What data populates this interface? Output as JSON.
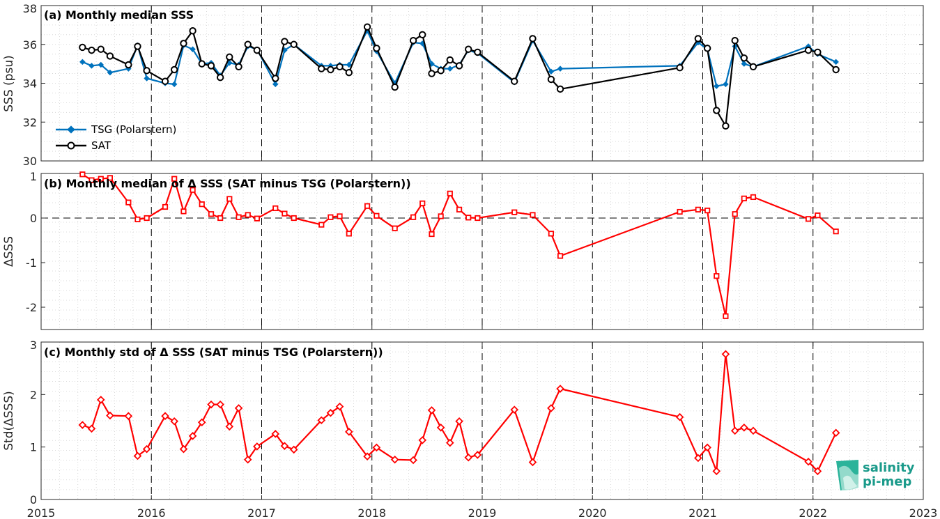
{
  "chart_data": [
    {
      "type": "line",
      "title": "(a) Monthly median SSS",
      "ylabel": "SSS (psu)",
      "xlim": [
        2015,
        2023
      ],
      "ylim": [
        30,
        38
      ],
      "yticks": [
        30,
        32,
        34,
        36,
        38
      ],
      "grid": "minor dotted",
      "legend_position": "bottom-left",
      "series": [
        {
          "name": "TSG (Polarstern)",
          "color": "#0072BD",
          "marker": "diamond",
          "x": [
            2015.375,
            2015.458,
            2015.542,
            2015.625,
            2015.792,
            2015.875,
            2015.958,
            2016.125,
            2016.208,
            2016.292,
            2016.375,
            2016.458,
            2016.542,
            2016.625,
            2016.708,
            2016.792,
            2016.875,
            2016.958,
            2017.125,
            2017.208,
            2017.292,
            2017.542,
            2017.625,
            2017.708,
            2017.792,
            2017.958,
            2018.042,
            2018.208,
            2018.375,
            2018.458,
            2018.542,
            2018.625,
            2018.708,
            2018.792,
            2018.875,
            2018.958,
            2019.292,
            2019.458,
            2019.625,
            2019.708,
            2020.792,
            2020.958,
            2021.042,
            2021.125,
            2021.208,
            2021.292,
            2021.375,
            2021.458,
            2021.958,
            2022.042,
            2022.208
          ],
          "y": [
            35.1,
            34.9,
            34.95,
            34.55,
            34.75,
            35.95,
            34.25,
            34.0,
            33.95,
            35.95,
            35.75,
            35.0,
            35.05,
            34.4,
            35.05,
            34.95,
            35.9,
            35.75,
            33.95,
            35.7,
            36.0,
            34.9,
            34.9,
            34.95,
            34.95,
            36.7,
            35.65,
            34.0,
            36.1,
            36.05,
            35.0,
            34.75,
            34.75,
            34.95,
            35.7,
            35.55,
            34.05,
            36.2,
            34.6,
            34.75,
            34.9,
            36.1,
            35.75,
            33.85,
            33.95,
            35.9,
            35.0,
            34.85,
            35.9,
            35.5,
            35.1
          ]
        },
        {
          "name": "SAT",
          "color": "#000000",
          "marker": "circle",
          "x": [
            2015.375,
            2015.458,
            2015.542,
            2015.625,
            2015.792,
            2015.875,
            2015.958,
            2016.125,
            2016.208,
            2016.292,
            2016.375,
            2016.458,
            2016.542,
            2016.625,
            2016.708,
            2016.792,
            2016.875,
            2016.958,
            2017.125,
            2017.208,
            2017.292,
            2017.542,
            2017.625,
            2017.708,
            2017.792,
            2017.958,
            2018.042,
            2018.208,
            2018.375,
            2018.458,
            2018.542,
            2018.625,
            2018.708,
            2018.792,
            2018.875,
            2018.958,
            2019.292,
            2019.458,
            2019.625,
            2019.708,
            2020.792,
            2020.958,
            2021.042,
            2021.125,
            2021.208,
            2021.292,
            2021.375,
            2021.458,
            2021.958,
            2022.042,
            2022.208
          ],
          "y": [
            35.85,
            35.7,
            35.75,
            35.4,
            34.95,
            35.9,
            34.65,
            34.1,
            34.7,
            36.05,
            36.7,
            35.0,
            34.9,
            34.3,
            35.35,
            34.85,
            36.0,
            35.7,
            34.25,
            36.15,
            36.0,
            34.75,
            34.7,
            34.85,
            34.55,
            36.9,
            35.8,
            33.8,
            36.2,
            36.5,
            34.5,
            34.65,
            35.2,
            34.9,
            35.75,
            35.6,
            34.1,
            36.3,
            34.2,
            33.7,
            34.8,
            36.3,
            35.8,
            32.6,
            31.8,
            36.2,
            35.3,
            34.85,
            35.7,
            35.6,
            34.7
          ]
        }
      ]
    },
    {
      "type": "line",
      "title": "(b) Monthly median of Δ SSS (SAT minus TSG (Polarstern))",
      "ylabel": "ΔSSS",
      "xlim": [
        2015,
        2023
      ],
      "ylim": [
        -2.5,
        1
      ],
      "yticks": [
        -2,
        -1,
        0,
        1
      ],
      "grid": "minor dotted",
      "reference_line": 0,
      "series": [
        {
          "color": "#FF0000",
          "marker": "square",
          "x": [
            2015.375,
            2015.458,
            2015.542,
            2015.625,
            2015.792,
            2015.875,
            2015.958,
            2016.125,
            2016.208,
            2016.292,
            2016.375,
            2016.458,
            2016.542,
            2016.625,
            2016.708,
            2016.792,
            2016.875,
            2016.958,
            2017.125,
            2017.208,
            2017.292,
            2017.542,
            2017.625,
            2017.708,
            2017.792,
            2017.958,
            2018.042,
            2018.208,
            2018.375,
            2018.458,
            2018.542,
            2018.625,
            2018.708,
            2018.792,
            2018.875,
            2018.958,
            2019.292,
            2019.458,
            2019.625,
            2019.708,
            2020.792,
            2020.958,
            2021.042,
            2021.125,
            2021.208,
            2021.292,
            2021.375,
            2021.458,
            2021.958,
            2022.042,
            2022.208
          ],
          "y": [
            0.98,
            0.85,
            0.88,
            0.9,
            0.35,
            -0.03,
            0.0,
            0.25,
            0.88,
            0.15,
            0.63,
            0.31,
            0.09,
            0.0,
            0.43,
            0.02,
            0.07,
            -0.01,
            0.22,
            0.1,
            0.0,
            -0.15,
            0.02,
            0.04,
            -0.35,
            0.27,
            0.05,
            -0.23,
            0.02,
            0.33,
            -0.36,
            0.04,
            0.55,
            0.19,
            0.01,
            0.0,
            0.13,
            0.07,
            -0.35,
            -0.85,
            0.14,
            0.19,
            0.17,
            -1.3,
            -2.2,
            0.09,
            0.44,
            0.47,
            -0.02,
            0.06,
            -0.3
          ]
        }
      ]
    },
    {
      "type": "line",
      "title": "(c) Monthly std of Δ SSS (SAT minus TSG (Polarstern))",
      "ylabel": "Std(ΔSSS)",
      "xlim": [
        2015,
        2023
      ],
      "ylim": [
        0,
        3
      ],
      "yticks": [
        0,
        1,
        2,
        3
      ],
      "xticks": [
        "2015",
        "2016",
        "2017",
        "2018",
        "2019",
        "2020",
        "2021",
        "2022",
        "2023"
      ],
      "grid": "minor dotted",
      "series": [
        {
          "color": "#FF0000",
          "marker": "diamond",
          "x": [
            2015.375,
            2015.458,
            2015.542,
            2015.625,
            2015.792,
            2015.875,
            2015.958,
            2016.125,
            2016.208,
            2016.292,
            2016.375,
            2016.458,
            2016.542,
            2016.625,
            2016.708,
            2016.792,
            2016.875,
            2016.958,
            2017.125,
            2017.208,
            2017.292,
            2017.542,
            2017.625,
            2017.708,
            2017.792,
            2017.958,
            2018.042,
            2018.208,
            2018.375,
            2018.458,
            2018.542,
            2018.625,
            2018.708,
            2018.792,
            2018.875,
            2018.958,
            2019.292,
            2019.458,
            2019.625,
            2019.708,
            2020.792,
            2020.958,
            2021.042,
            2021.125,
            2021.208,
            2021.292,
            2021.375,
            2021.458,
            2021.958,
            2022.042,
            2022.208
          ],
          "y": [
            1.42,
            1.35,
            1.9,
            1.6,
            1.59,
            0.83,
            0.96,
            1.59,
            1.49,
            0.96,
            1.21,
            1.47,
            1.81,
            1.81,
            1.39,
            1.74,
            0.76,
            1.01,
            1.25,
            1.02,
            0.95,
            1.51,
            1.65,
            1.77,
            1.29,
            0.82,
            0.99,
            0.76,
            0.75,
            1.13,
            1.7,
            1.37,
            1.08,
            1.49,
            0.8,
            0.85,
            1.71,
            0.71,
            1.74,
            2.11,
            1.57,
            0.79,
            0.99,
            0.54,
            2.77,
            1.31,
            1.37,
            1.31,
            0.72,
            0.54,
            1.27
          ]
        }
      ]
    }
  ],
  "logo": {
    "line1": "salinity",
    "line2": "pi-mep"
  }
}
